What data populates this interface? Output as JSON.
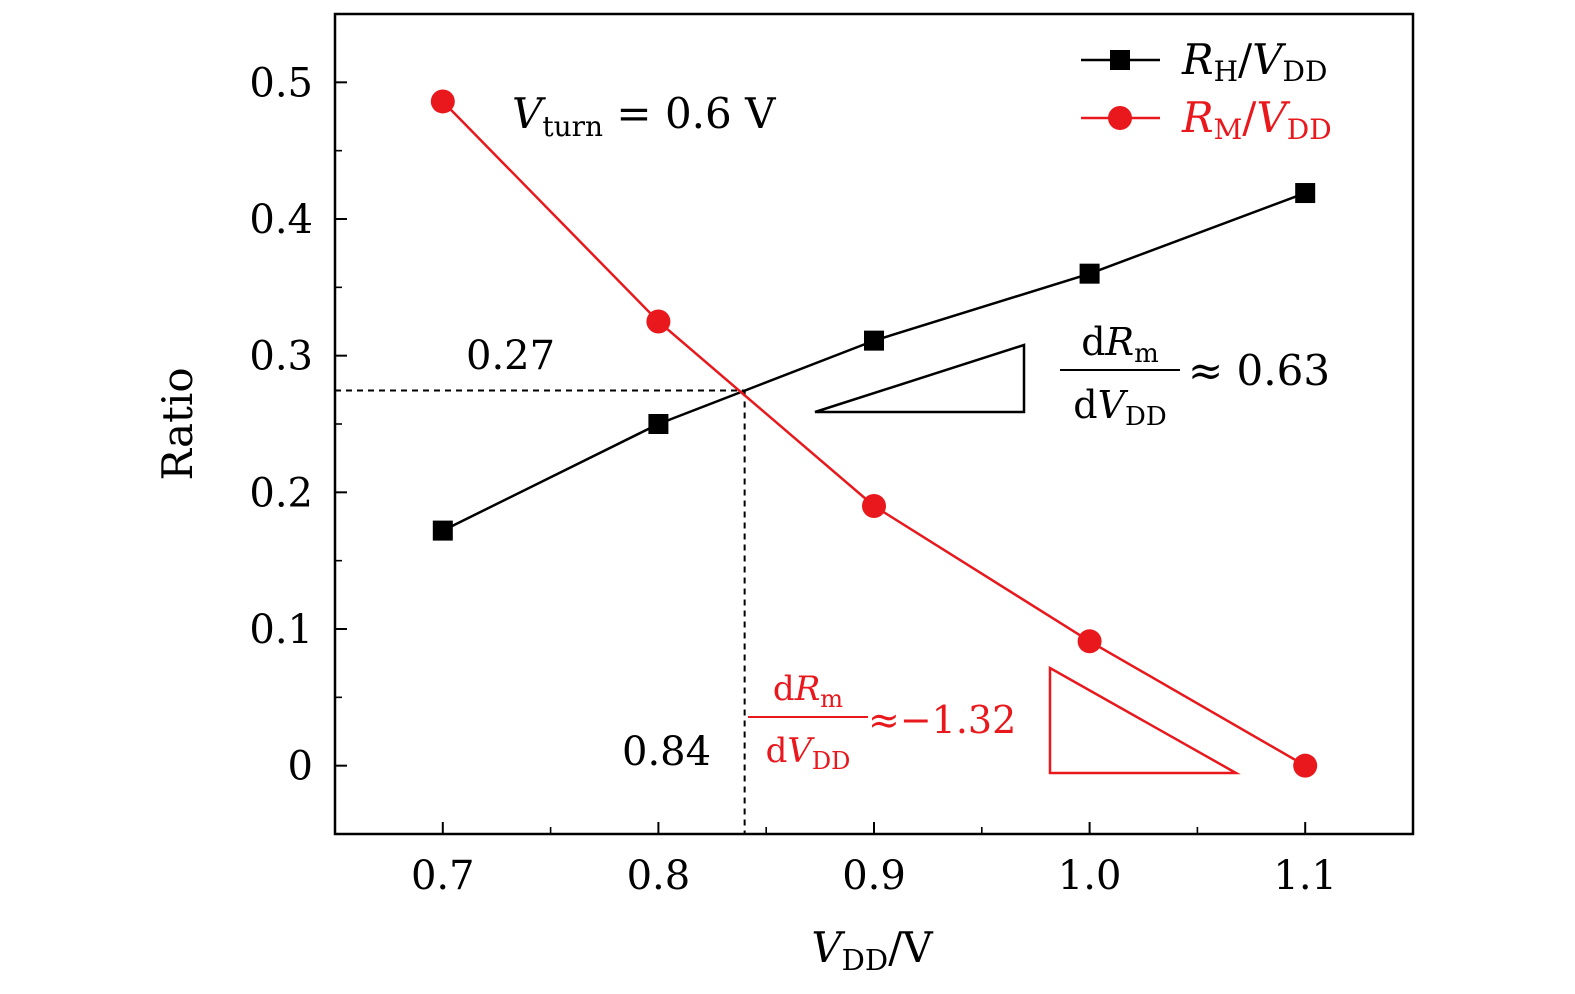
{
  "chart_data": {
    "type": "line",
    "xlabel": {
      "main": "V",
      "sub": "DD",
      "unit": "/V"
    },
    "ylabel": "Ratio",
    "xlim": [
      0.65,
      1.15
    ],
    "ylim": [
      -0.05,
      0.55
    ],
    "xticks": [
      0.7,
      0.8,
      0.9,
      1.0,
      1.1
    ],
    "xtick_labels": [
      "0.7",
      "0.8",
      "0.9",
      "1.0",
      "1.1"
    ],
    "xminor": [
      0.75,
      0.85,
      0.95,
      1.05
    ],
    "yticks": [
      0,
      0.1,
      0.2,
      0.3,
      0.4,
      0.5
    ],
    "ytick_labels": [
      "0",
      "0.1",
      "0.2",
      "0.3",
      "0.4",
      "0.5"
    ],
    "yminor": [
      0.05,
      0.15,
      0.25,
      0.35,
      0.45
    ],
    "grid": false,
    "legend_position": "top-right",
    "series": [
      {
        "id": "rh",
        "legend": {
          "main": "R",
          "sub": "H",
          "sep": "/V",
          "sub2": "DD"
        },
        "marker": "square",
        "color": "#000000",
        "x": [
          0.7,
          0.8,
          0.9,
          1.0,
          1.1
        ],
        "y": [
          0.172,
          0.25,
          0.311,
          0.36,
          0.419
        ]
      },
      {
        "id": "rm",
        "legend": {
          "main": "R",
          "sub": "M",
          "sep": "/V",
          "sub2": "DD"
        },
        "marker": "circle",
        "color": "#e8181d",
        "x": [
          0.7,
          0.8,
          0.9,
          1.0,
          1.1
        ],
        "y": [
          0.486,
          0.325,
          0.19,
          0.091,
          0.0
        ]
      }
    ],
    "annotations": {
      "vturn": {
        "main": "V",
        "sub": "turn",
        "rest": "= 0.6 V"
      },
      "intersection": {
        "x": 0.84,
        "y": 0.27,
        "x_label": "0.84",
        "y_label": "0.27"
      },
      "slope_h": {
        "num_d": "d",
        "num_main": "R",
        "num_sub": "m",
        "den_d": "d",
        "den_main": "V",
        "den_sub": "DD",
        "approx": "≈ 0.63",
        "color": "#000000"
      },
      "slope_m": {
        "num_d": "d",
        "num_main": "R",
        "num_sub": "m",
        "den_d": "d",
        "den_main": "V",
        "den_sub": "DD",
        "approx": "≈−1.32",
        "color": "#e8181d"
      }
    }
  }
}
